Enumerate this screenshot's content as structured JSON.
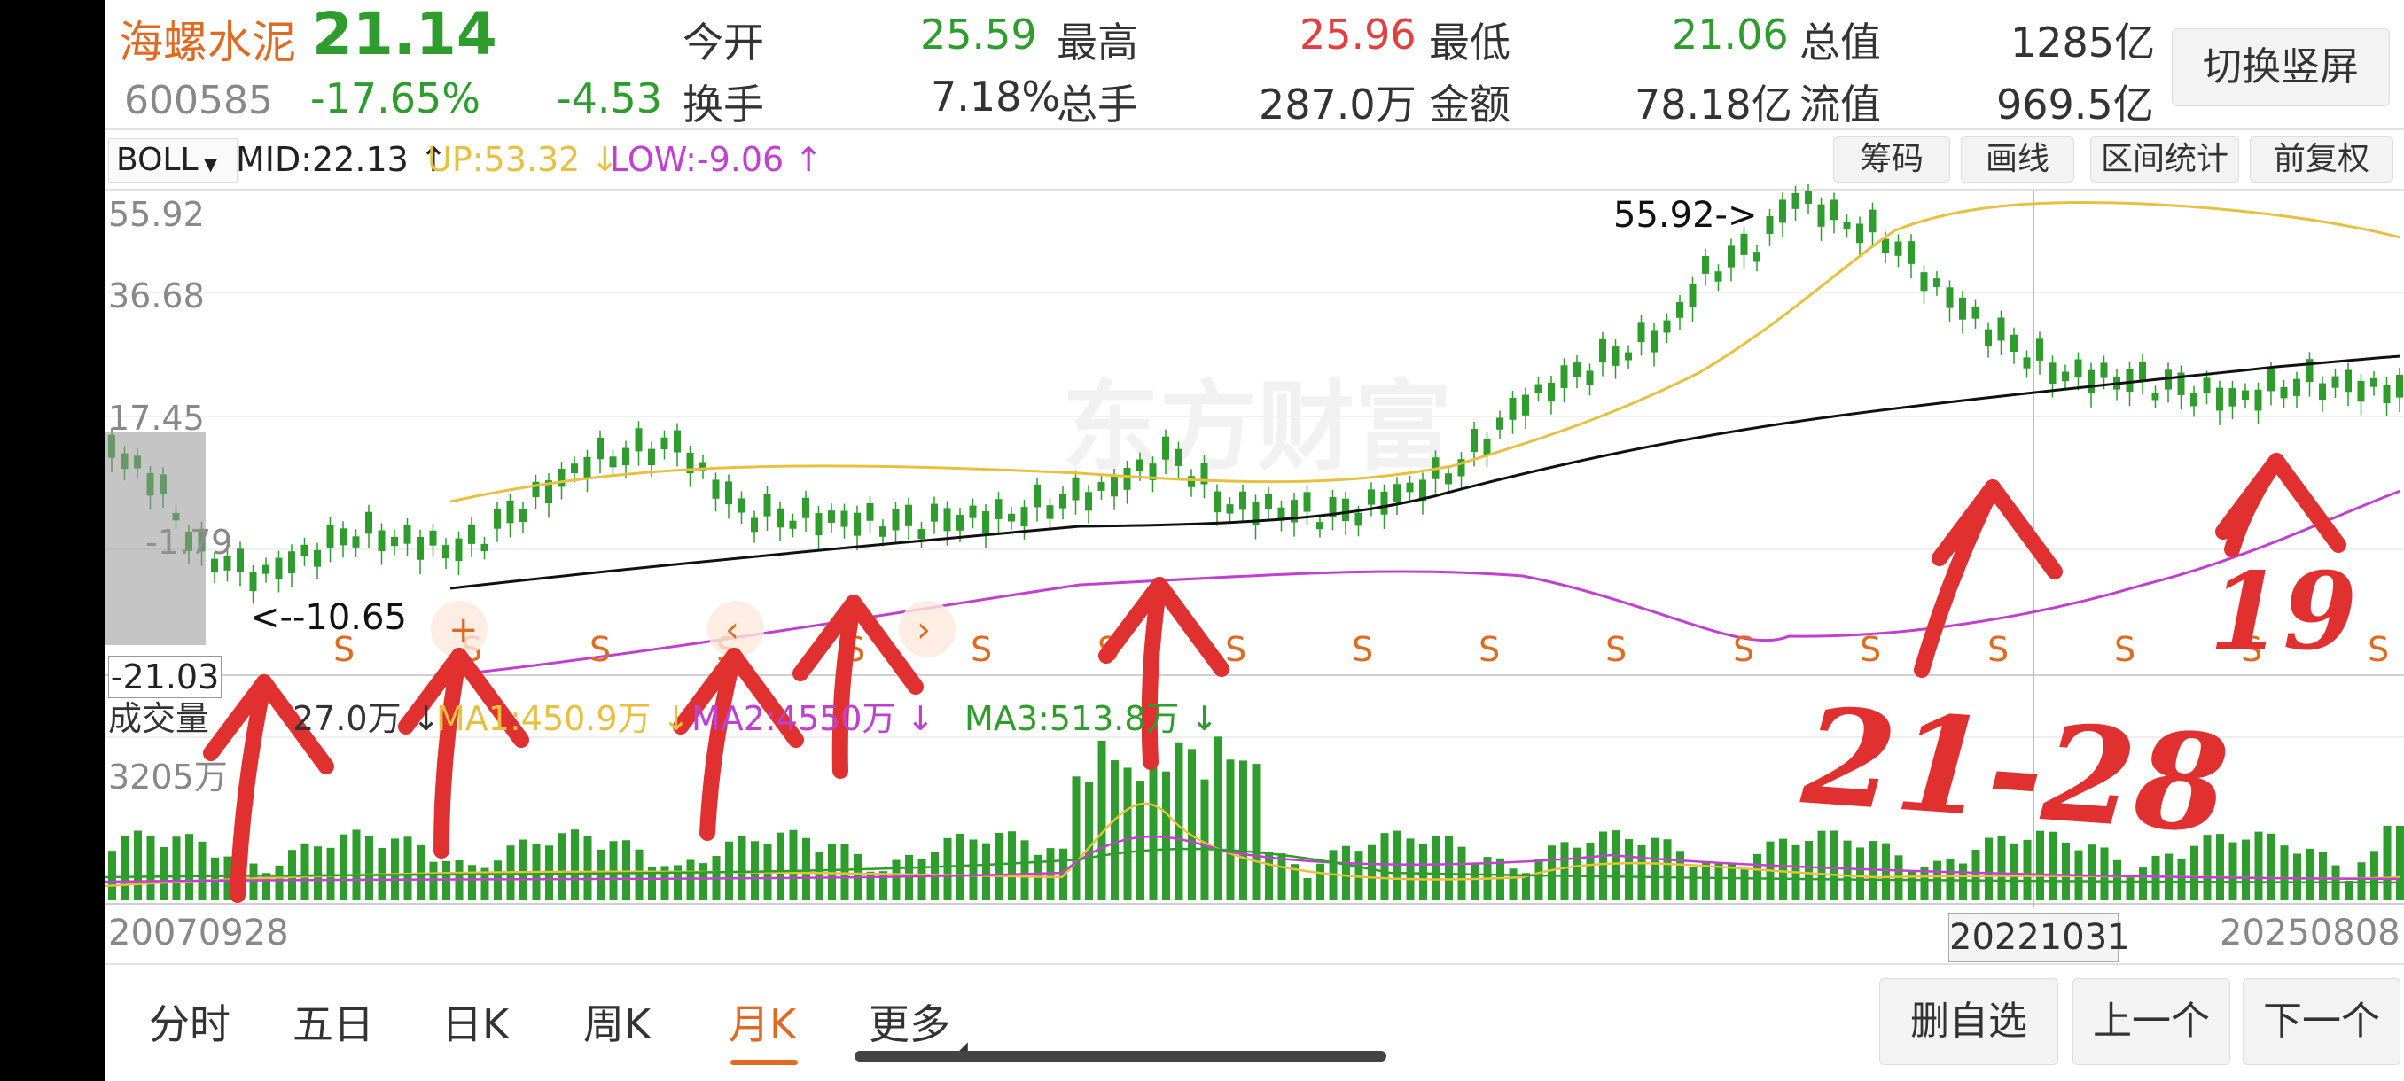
{
  "header": {
    "name": "海螺水泥",
    "code": "600585",
    "price": "21.14",
    "change_pct": "-17.65%",
    "change": "-4.53",
    "stats": [
      {
        "label": "今开",
        "value": "25.59",
        "color": "#2e9d2e"
      },
      {
        "label": "最高",
        "value": "25.96",
        "color": "#e04040"
      },
      {
        "label": "最低",
        "value": "21.06",
        "color": "#2e9d2e"
      },
      {
        "label": "总值",
        "value": "1285亿",
        "color": "#333333"
      },
      {
        "label": "换手",
        "value": "7.18%",
        "color": "#333333"
      },
      {
        "label": "总手",
        "value": "287.0万",
        "color": "#333333"
      },
      {
        "label": "金额",
        "value": "78.18亿",
        "color": "#333333"
      },
      {
        "label": "流值",
        "value": "969.5亿",
        "color": "#333333"
      }
    ],
    "switch_button": "切换竖屏"
  },
  "indicator_bar": {
    "selector": "BOLL",
    "mid": "MID:22.13",
    "up": "UP:53.32",
    "low": "LOW:-9.06",
    "buttons": [
      "筹码",
      "画线",
      "区间统计",
      "前复权"
    ]
  },
  "price_axis": [
    "55.92",
    "36.68",
    "17.45",
    "-1.79",
    "-21.03"
  ],
  "annotations": {
    "high_marker": "55.92->",
    "low_marker": "<--10.65",
    "crosshair_price": "-21.03",
    "signal_letter": "S",
    "handwriting": [
      "21-28",
      "19"
    ]
  },
  "volume_bar": {
    "label": "成交量",
    "value": "27.0万",
    "ma1": "MA1:450.9万",
    "ma2": "MA2:4550万",
    "ma3": "MA3:513.8万",
    "axis_top": "3205万"
  },
  "dates": {
    "start": "20070928",
    "crosshair": "20221031",
    "end": "20250808"
  },
  "watermark": "东方财富",
  "tabs": [
    {
      "label": "分时",
      "active": false
    },
    {
      "label": "五日",
      "active": false
    },
    {
      "label": "日K",
      "active": false
    },
    {
      "label": "周K",
      "active": false
    },
    {
      "label": "月K",
      "active": true
    },
    {
      "label": "更多",
      "active": false
    }
  ],
  "bottom_buttons": [
    "删自选",
    "上一个",
    "下一个"
  ],
  "colors": {
    "up": "#e04040",
    "down": "#2e9d2e",
    "upper_band": "#e8c040",
    "lower_band": "#c040d0",
    "mid_band": "#111111",
    "accent": "#e06a20",
    "pen": "#e03030"
  }
}
